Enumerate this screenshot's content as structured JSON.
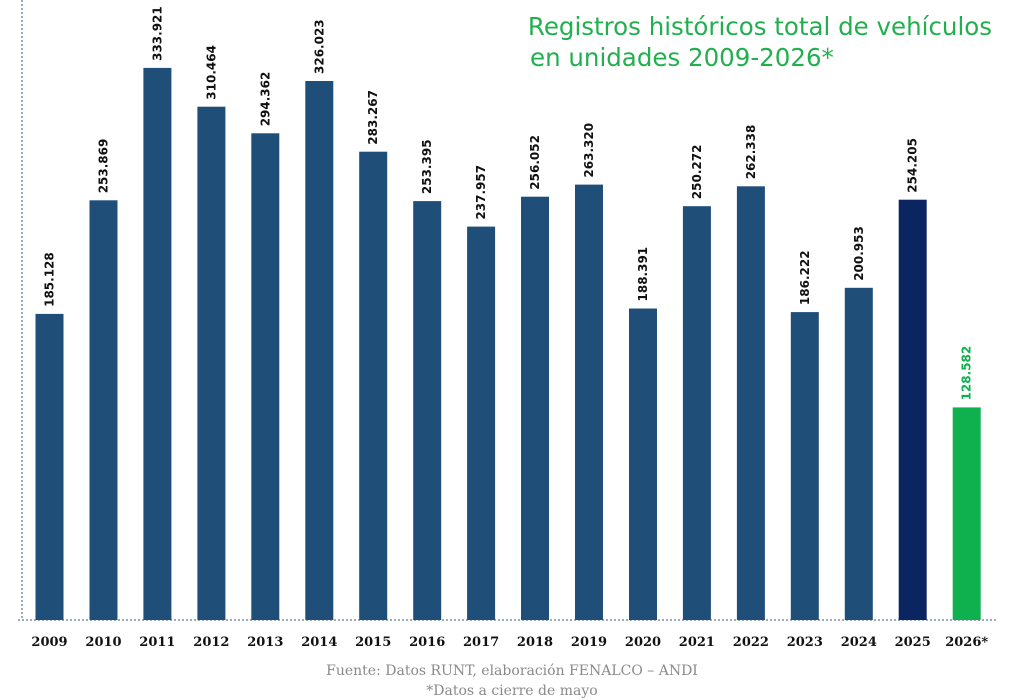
{
  "chart_data": {
    "type": "bar",
    "title": [
      "Registros históricos total de  vehículos",
      "en unidades 2009-2026*"
    ],
    "categories": [
      "2009",
      "2010",
      "2011",
      "2012",
      "2013",
      "2014",
      "2015",
      "2016",
      "2017",
      "2018",
      "2019",
      "2020",
      "2021",
      "2022",
      "2023",
      "2024",
      "2025",
      "2026*"
    ],
    "values": [
      185128,
      253869,
      333921,
      310464,
      294362,
      326023,
      283267,
      253395,
      237957,
      256052,
      263320,
      188391,
      250272,
      262338,
      186222,
      200953,
      254205,
      128582
    ],
    "value_labels": [
      "185.128",
      "253.869",
      "333.921",
      "310.464",
      "294.362",
      "326.023",
      "283.267",
      "253.395",
      "237.957",
      "256.052",
      "263.320",
      "188.391",
      "250.272",
      "262.338",
      "186.222",
      "200.953",
      "254.205",
      "128.582"
    ],
    "bar_colors": [
      "#1f4e79",
      "#1f4e79",
      "#1f4e79",
      "#1f4e79",
      "#1f4e79",
      "#1f4e79",
      "#1f4e79",
      "#1f4e79",
      "#1f4e79",
      "#1f4e79",
      "#1f4e79",
      "#1f4e79",
      "#1f4e79",
      "#1f4e79",
      "#1f4e79",
      "#1f4e79",
      "#0b2560",
      "#0fb14f"
    ],
    "label_colors": [
      "#111111",
      "#111111",
      "#111111",
      "#111111",
      "#111111",
      "#111111",
      "#111111",
      "#111111",
      "#111111",
      "#111111",
      "#111111",
      "#111111",
      "#111111",
      "#111111",
      "#111111",
      "#111111",
      "#111111",
      "#0fb14f"
    ],
    "ylim": [
      0,
      375000
    ],
    "grid": false,
    "xlabel": "",
    "ylabel": ""
  },
  "footer": {
    "source": "Fuente: Datos RUNT, elaboración FENALCO – ANDI",
    "note": "*Datos a cierre de mayo"
  }
}
